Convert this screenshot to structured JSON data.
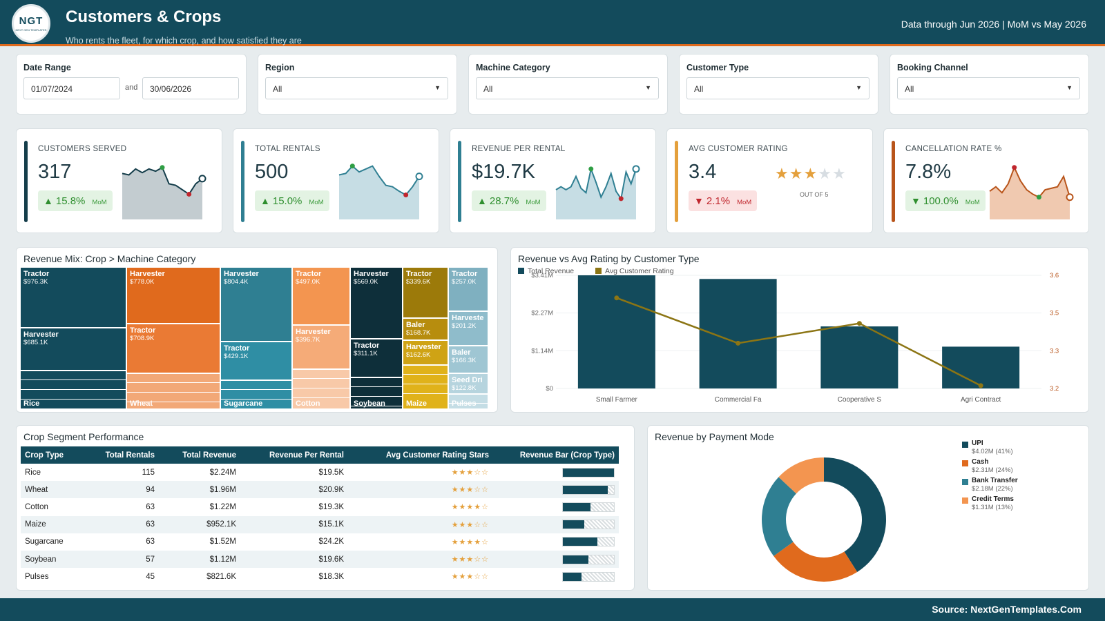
{
  "header": {
    "logo_text": "NGT",
    "logo_sub": "NEXT GEN TEMPLATES",
    "title": "Customers & Crops",
    "subtitle": "Who rents the fleet, for which crop, and how satisfied they are",
    "right_text": "Data through Jun 2026 | MoM vs May 2026"
  },
  "filters": {
    "date_range": {
      "label": "Date Range",
      "from": "01/07/2024",
      "and": "and",
      "to": "30/06/2026"
    },
    "region": {
      "label": "Region",
      "value": "All"
    },
    "machine_category": {
      "label": "Machine Category",
      "value": "All"
    },
    "customer_type": {
      "label": "Customer Type",
      "value": "All"
    },
    "booking_channel": {
      "label": "Booking Channel",
      "value": "All"
    }
  },
  "kpis": [
    {
      "label": "CUSTOMERS SERVED",
      "value": "317",
      "change": "15.8%",
      "direction": "up",
      "mom": "MoM",
      "color": "#143d4a",
      "spark": [
        62,
        60,
        68,
        63,
        68,
        65,
        70,
        48,
        46,
        40,
        34,
        48,
        55
      ]
    },
    {
      "label": "TOTAL RENTALS",
      "value": "500",
      "change": "15.0%",
      "direction": "up",
      "mom": "MoM",
      "color": "#2f7f92",
      "spark": [
        60,
        62,
        72,
        64,
        68,
        72,
        58,
        46,
        44,
        38,
        33,
        44,
        58
      ]
    },
    {
      "label": "REVENUE PER RENTAL",
      "value": "$19.7K",
      "change": "28.7%",
      "direction": "up",
      "mom": "MoM",
      "color": "#2f7f92",
      "spark": [
        40,
        44,
        40,
        44,
        58,
        42,
        36,
        68,
        50,
        30,
        44,
        62,
        38,
        28,
        64,
        48,
        68
      ]
    },
    {
      "label": "AVG CUSTOMER RATING",
      "value": "3.4",
      "change": "2.1%",
      "direction": "down",
      "mom": "MoM",
      "color": "#e4a03c",
      "rating": 3,
      "rating_max": 5,
      "out_of": "OUT OF 5"
    },
    {
      "label": "CANCELLATION RATE %",
      "value": "7.8%",
      "change": "100.0%",
      "direction": "down",
      "mom": "MoM",
      "color": "#b8541a",
      "spark": [
        38,
        44,
        36,
        48,
        70,
        52,
        40,
        34,
        30,
        40,
        42,
        44,
        58,
        30
      ]
    }
  ],
  "treemap": {
    "title": "Revenue Mix: Crop > Machine Category",
    "tiles": [
      {
        "name": "Tractor",
        "value": "$976.3K",
        "color": "#134b5c"
      },
      {
        "name": "Harvester",
        "value": "$685.1K",
        "color": "#134b5c"
      },
      {
        "name": "Rice",
        "value": "",
        "color": "#134b5c"
      },
      {
        "name": "Harvester",
        "value": "$778.0K",
        "color": "#e06a1d"
      },
      {
        "name": "Tractor",
        "value": "$708.9K",
        "color": "#ea7a34"
      },
      {
        "name": "Wheat",
        "value": "",
        "color": "#f2a877"
      },
      {
        "name": "Harvester",
        "value": "$804.4K",
        "color": "#2f7f92"
      },
      {
        "name": "Tractor",
        "value": "$429.1K",
        "color": "#2f8ea4"
      },
      {
        "name": "Sugarcane",
        "value": "",
        "color": "#2f8ea4"
      },
      {
        "name": "Tractor",
        "value": "$497.0K",
        "color": "#f39550"
      },
      {
        "name": "Harvester",
        "value": "$396.7K",
        "color": "#f5ab78"
      },
      {
        "name": "Cotton",
        "value": "",
        "color": "#f8c9a8"
      },
      {
        "name": "Harvester",
        "value": "$569.0K",
        "color": "#0e2f3a"
      },
      {
        "name": "Tractor",
        "value": "$311.1K",
        "color": "#0e2f3a"
      },
      {
        "name": "Soybean",
        "value": "",
        "color": "#0e2f3a"
      },
      {
        "name": "Tractor",
        "value": "$339.6K",
        "color": "#9c7a0a"
      },
      {
        "name": "Baler",
        "value": "$168.7K",
        "color": "#b78d0e"
      },
      {
        "name": "Harvester",
        "value": "$162.6K",
        "color": "#cfa314"
      },
      {
        "name": "Maize",
        "value": "",
        "color": "#e0b21a"
      },
      {
        "name": "Tractor",
        "value": "$257.0K",
        "color": "#7fb0c0"
      },
      {
        "name": "Harveste",
        "value": "$201.2K",
        "color": "#8fbccb"
      },
      {
        "name": "Baler",
        "value": "$166.3K",
        "color": "#9fc6d3"
      },
      {
        "name": "Seed Dri",
        "value": "$122.8K",
        "color": "#b6d4de"
      },
      {
        "name": "Pulses",
        "value": "",
        "color": "#c4dde5"
      }
    ]
  },
  "combo": {
    "title": "Revenue vs Avg Rating by Customer Type",
    "legend": [
      {
        "name": "Total Revenue",
        "color": "#134b5c"
      },
      {
        "name": "Avg Customer Rating",
        "color": "#8c7514"
      }
    ],
    "y_ticks": [
      "$3.41M",
      "$2.27M",
      "$1.14M",
      "$0"
    ],
    "y2_ticks": [
      "3.6",
      "3.5",
      "3.3",
      "3.2"
    ],
    "x_ticks": [
      "Small Farmer",
      "Commercial Fa",
      "Cooperative S",
      "Agri Contract"
    ]
  },
  "chart_data": {
    "type": "bar",
    "title": "Revenue vs Avg Rating by Customer Type",
    "categories": [
      "Small Farmer",
      "Commercial Fa",
      "Cooperative S",
      "Agri Contract"
    ],
    "series": [
      {
        "name": "Total Revenue",
        "type": "bar",
        "axis": "left",
        "values": [
          3.41,
          3.3,
          1.87,
          1.26
        ],
        "unit": "$M"
      },
      {
        "name": "Avg Customer Rating",
        "type": "line",
        "axis": "right",
        "values": [
          3.52,
          3.36,
          3.43,
          3.21
        ]
      }
    ],
    "ylim": [
      0,
      3.41
    ],
    "y2lim": [
      3.2,
      3.6
    ]
  },
  "table": {
    "title": "Crop Segment Performance",
    "columns": [
      "Crop Type",
      "Total Rentals",
      "Total Revenue",
      "Revenue Per Rental",
      "Avg Customer Rating Stars",
      "Revenue Bar (Crop Type)"
    ],
    "rows": [
      {
        "crop": "Rice",
        "rentals": "115",
        "revenue": "$2.24M",
        "rpr": "$19.5K",
        "stars": "★★★☆☆",
        "bar": 1.0
      },
      {
        "crop": "Wheat",
        "rentals": "94",
        "revenue": "$1.96M",
        "rpr": "$20.9K",
        "stars": "★★★☆☆",
        "bar": 0.875
      },
      {
        "crop": "Cotton",
        "rentals": "63",
        "revenue": "$1.22M",
        "rpr": "$19.3K",
        "stars": "★★★★☆",
        "bar": 0.545
      },
      {
        "crop": "Maize",
        "rentals": "63",
        "revenue": "$952.1K",
        "rpr": "$15.1K",
        "stars": "★★★☆☆",
        "bar": 0.425
      },
      {
        "crop": "Sugarcane",
        "rentals": "63",
        "revenue": "$1.52M",
        "rpr": "$24.2K",
        "stars": "★★★★☆",
        "bar": 0.679
      },
      {
        "crop": "Soybean",
        "rentals": "57",
        "revenue": "$1.12M",
        "rpr": "$19.6K",
        "stars": "★★★☆☆",
        "bar": 0.5
      },
      {
        "crop": "Pulses",
        "rentals": "45",
        "revenue": "$821.6K",
        "rpr": "$18.3K",
        "stars": "★★★☆☆",
        "bar": 0.367
      }
    ]
  },
  "donut": {
    "title": "Revenue by Payment Mode",
    "slices": [
      {
        "name": "UPI",
        "label": "$4.02M (41%)",
        "value": 41,
        "color": "#134b5c"
      },
      {
        "name": "Cash",
        "label": "$2.31M (24%)",
        "value": 24,
        "color": "#e06a1d"
      },
      {
        "name": "Bank Transfer",
        "label": "$2.18M (22%)",
        "value": 22,
        "color": "#2f7f92"
      },
      {
        "name": "Credit Terms",
        "label": "$1.31M (13%)",
        "value": 13,
        "color": "#f39550"
      }
    ]
  },
  "footer": {
    "source": "Source: NextGenTemplates.Com"
  }
}
